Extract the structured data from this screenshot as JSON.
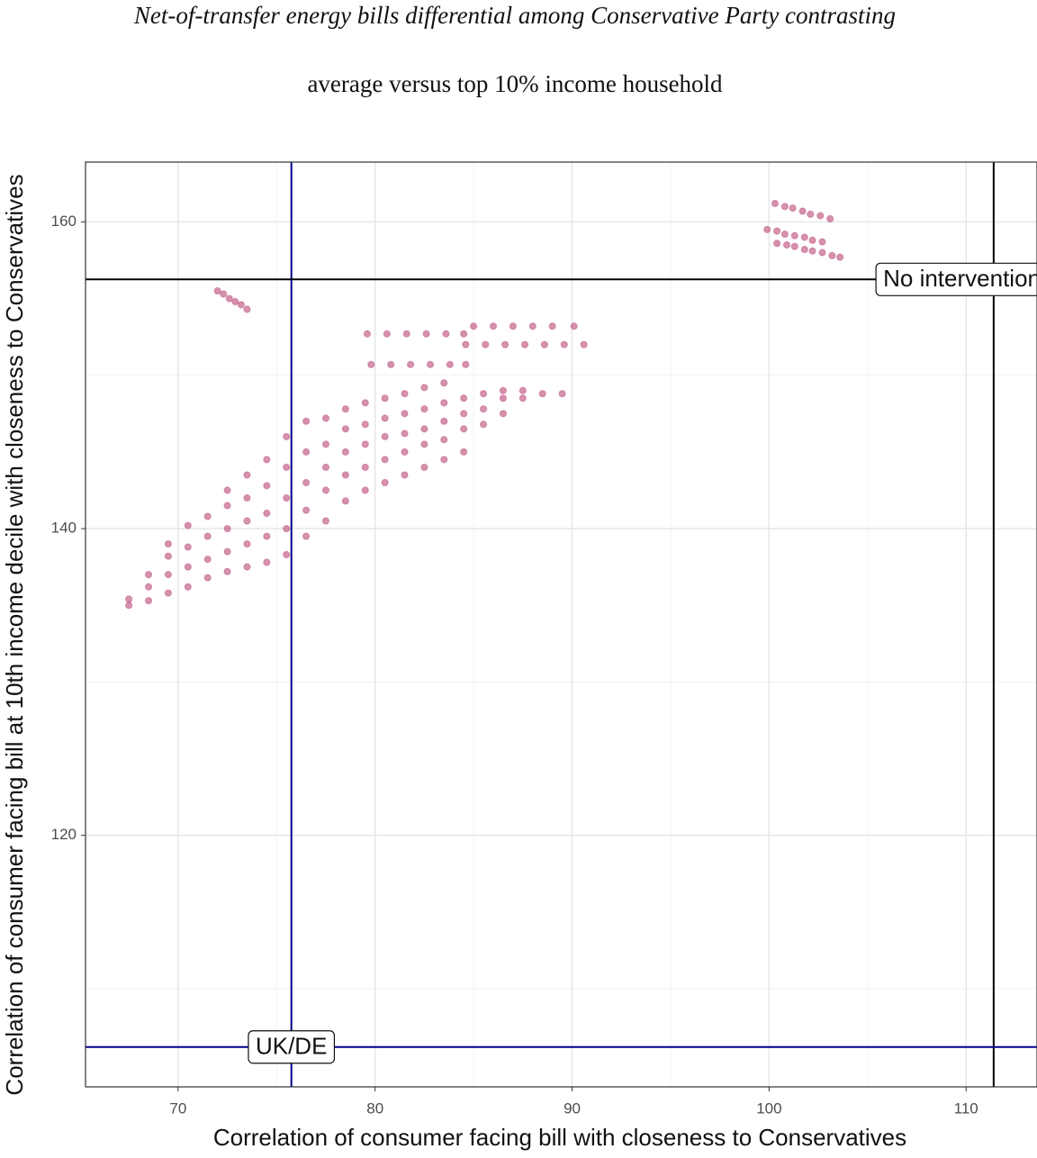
{
  "chart_data": {
    "type": "scatter",
    "title": [
      "Net-of-transfer energy bills differential among Conservative Party contrasting",
      "average versus top 10% income household"
    ],
    "xlabel": "Correlation of consumer facing bill with closeness to Conservatives",
    "ylabel": "Correlation of consumer facing bill at 10th income decile with closeness to Conservatives",
    "color": "#b5376b",
    "grid": true,
    "xlim": [
      65.3,
      113.6
    ],
    "ylim": [
      103.6,
      163.9
    ],
    "xticks": [
      70,
      80,
      90,
      100,
      110
    ],
    "yticks": [
      120,
      140,
      160
    ],
    "vlines": [
      {
        "x": 111.4,
        "color": "#000000"
      },
      {
        "x": 75.75,
        "color": "#00008b"
      }
    ],
    "hlines": [
      {
        "y": 156.25,
        "color": "#000000",
        "label": "No intervention"
      },
      {
        "y": 106.2,
        "color": "#00008b",
        "label": "UK/DE"
      }
    ],
    "x": [
      67.5,
      67.5,
      68.5,
      68.5,
      68.5,
      69.5,
      69.5,
      69.5,
      69.5,
      70.5,
      70.5,
      70.5,
      70.5,
      71.5,
      71.5,
      71.5,
      71.5,
      72.5,
      72.5,
      72.5,
      72.5,
      72.5,
      73.5,
      73.5,
      73.5,
      73.5,
      73.5,
      74.5,
      74.5,
      74.5,
      74.5,
      74.5,
      75.5,
      75.5,
      75.5,
      75.5,
      75.5,
      76.5,
      76.5,
      76.5,
      76.5,
      76.5,
      77.5,
      77.5,
      77.5,
      77.5,
      77.5,
      78.5,
      78.5,
      78.5,
      78.5,
      78.5,
      79.5,
      79.5,
      79.5,
      79.5,
      79.5,
      80.5,
      80.5,
      80.5,
      80.5,
      80.5,
      81.5,
      81.5,
      81.5,
      81.5,
      81.5,
      82.5,
      82.5,
      82.5,
      82.5,
      82.5,
      83.5,
      83.5,
      83.5,
      83.5,
      83.5,
      84.5,
      84.5,
      84.5,
      84.5,
      85.5,
      85.5,
      85.5,
      86.5,
      86.5,
      86.5,
      87.5,
      87.5,
      88.5,
      89.5,
      85.0,
      86.0,
      87.0,
      88.0,
      89.0,
      90.1,
      79.6,
      80.6,
      81.6,
      82.6,
      83.6,
      84.5,
      84.6,
      85.6,
      86.6,
      87.6,
      88.6,
      89.6,
      90.6,
      79.8,
      80.8,
      81.8,
      82.8,
      83.8,
      84.6,
      72.0,
      72.3,
      72.6,
      72.9,
      73.2,
      73.5,
      100.3,
      100.8,
      101.2,
      101.7,
      102.1,
      102.6,
      103.1,
      99.9,
      100.4,
      100.8,
      101.3,
      101.8,
      102.2,
      102.7,
      100.4,
      100.9,
      101.3,
      101.8,
      102.2,
      102.7,
      103.2,
      103.6
    ],
    "values": [
      135.0,
      135.4,
      135.3,
      136.2,
      137.0,
      135.8,
      137.0,
      138.2,
      139.0,
      136.2,
      137.5,
      138.8,
      140.2,
      136.8,
      138.0,
      139.5,
      140.8,
      137.2,
      138.5,
      140.0,
      141.5,
      142.5,
      137.5,
      139.0,
      140.5,
      142.0,
      143.5,
      137.8,
      139.5,
      141.0,
      142.8,
      144.5,
      138.3,
      140.0,
      142.0,
      144.0,
      146.0,
      139.5,
      141.2,
      143.0,
      145.0,
      147.0,
      140.5,
      142.5,
      144.0,
      145.5,
      147.2,
      141.8,
      143.5,
      145.0,
      146.5,
      147.8,
      142.5,
      144.0,
      145.5,
      146.8,
      148.2,
      143.0,
      144.5,
      146.0,
      147.2,
      148.5,
      143.5,
      145.0,
      146.2,
      147.5,
      148.8,
      144.0,
      145.5,
      146.5,
      147.8,
      149.2,
      144.5,
      145.8,
      147.0,
      148.2,
      149.5,
      145.0,
      146.5,
      147.5,
      148.5,
      146.8,
      147.8,
      148.8,
      147.5,
      148.5,
      149.0,
      148.5,
      149.0,
      148.8,
      148.8,
      153.2,
      153.2,
      153.2,
      153.2,
      153.2,
      153.2,
      152.7,
      152.7,
      152.7,
      152.7,
      152.7,
      152.7,
      152.0,
      152.0,
      152.0,
      152.0,
      152.0,
      152.0,
      152.0,
      150.7,
      150.7,
      150.7,
      150.7,
      150.7,
      150.7,
      155.5,
      155.3,
      155.0,
      154.8,
      154.6,
      154.3,
      161.2,
      161.0,
      160.9,
      160.7,
      160.5,
      160.4,
      160.2,
      159.5,
      159.4,
      159.2,
      159.1,
      159.0,
      158.8,
      158.7,
      158.6,
      158.5,
      158.4,
      158.2,
      158.1,
      158.0,
      157.8,
      157.7
    ]
  }
}
